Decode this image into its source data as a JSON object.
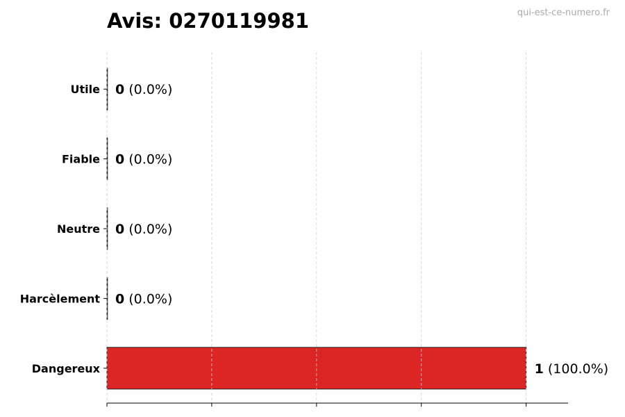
{
  "watermark": "qui-est-ce-numero.fr",
  "chart_data": {
    "type": "bar",
    "orientation": "horizontal",
    "title": "Avis: 0270119981",
    "categories": [
      "Utile",
      "Fiable",
      "Neutre",
      "Harcèlement",
      "Dangereux"
    ],
    "values": [
      0,
      0,
      0,
      0,
      1
    ],
    "value_labels": [
      "0",
      "0",
      "0",
      "0",
      "1"
    ],
    "percent_labels": [
      "(0.0%)",
      "(0.0%)",
      "(0.0%)",
      "(0.0%)",
      "(100.0%)"
    ],
    "colors": [
      "#9ca3af",
      "#9ca3af",
      "#9ca3af",
      "#9ca3af",
      "#dc2626"
    ],
    "xlim": [
      0,
      1.1
    ],
    "xticks": [
      0,
      0.25,
      0.5,
      0.75,
      1.0
    ],
    "grid": "x-dashed",
    "xlabel": "",
    "ylabel": ""
  }
}
